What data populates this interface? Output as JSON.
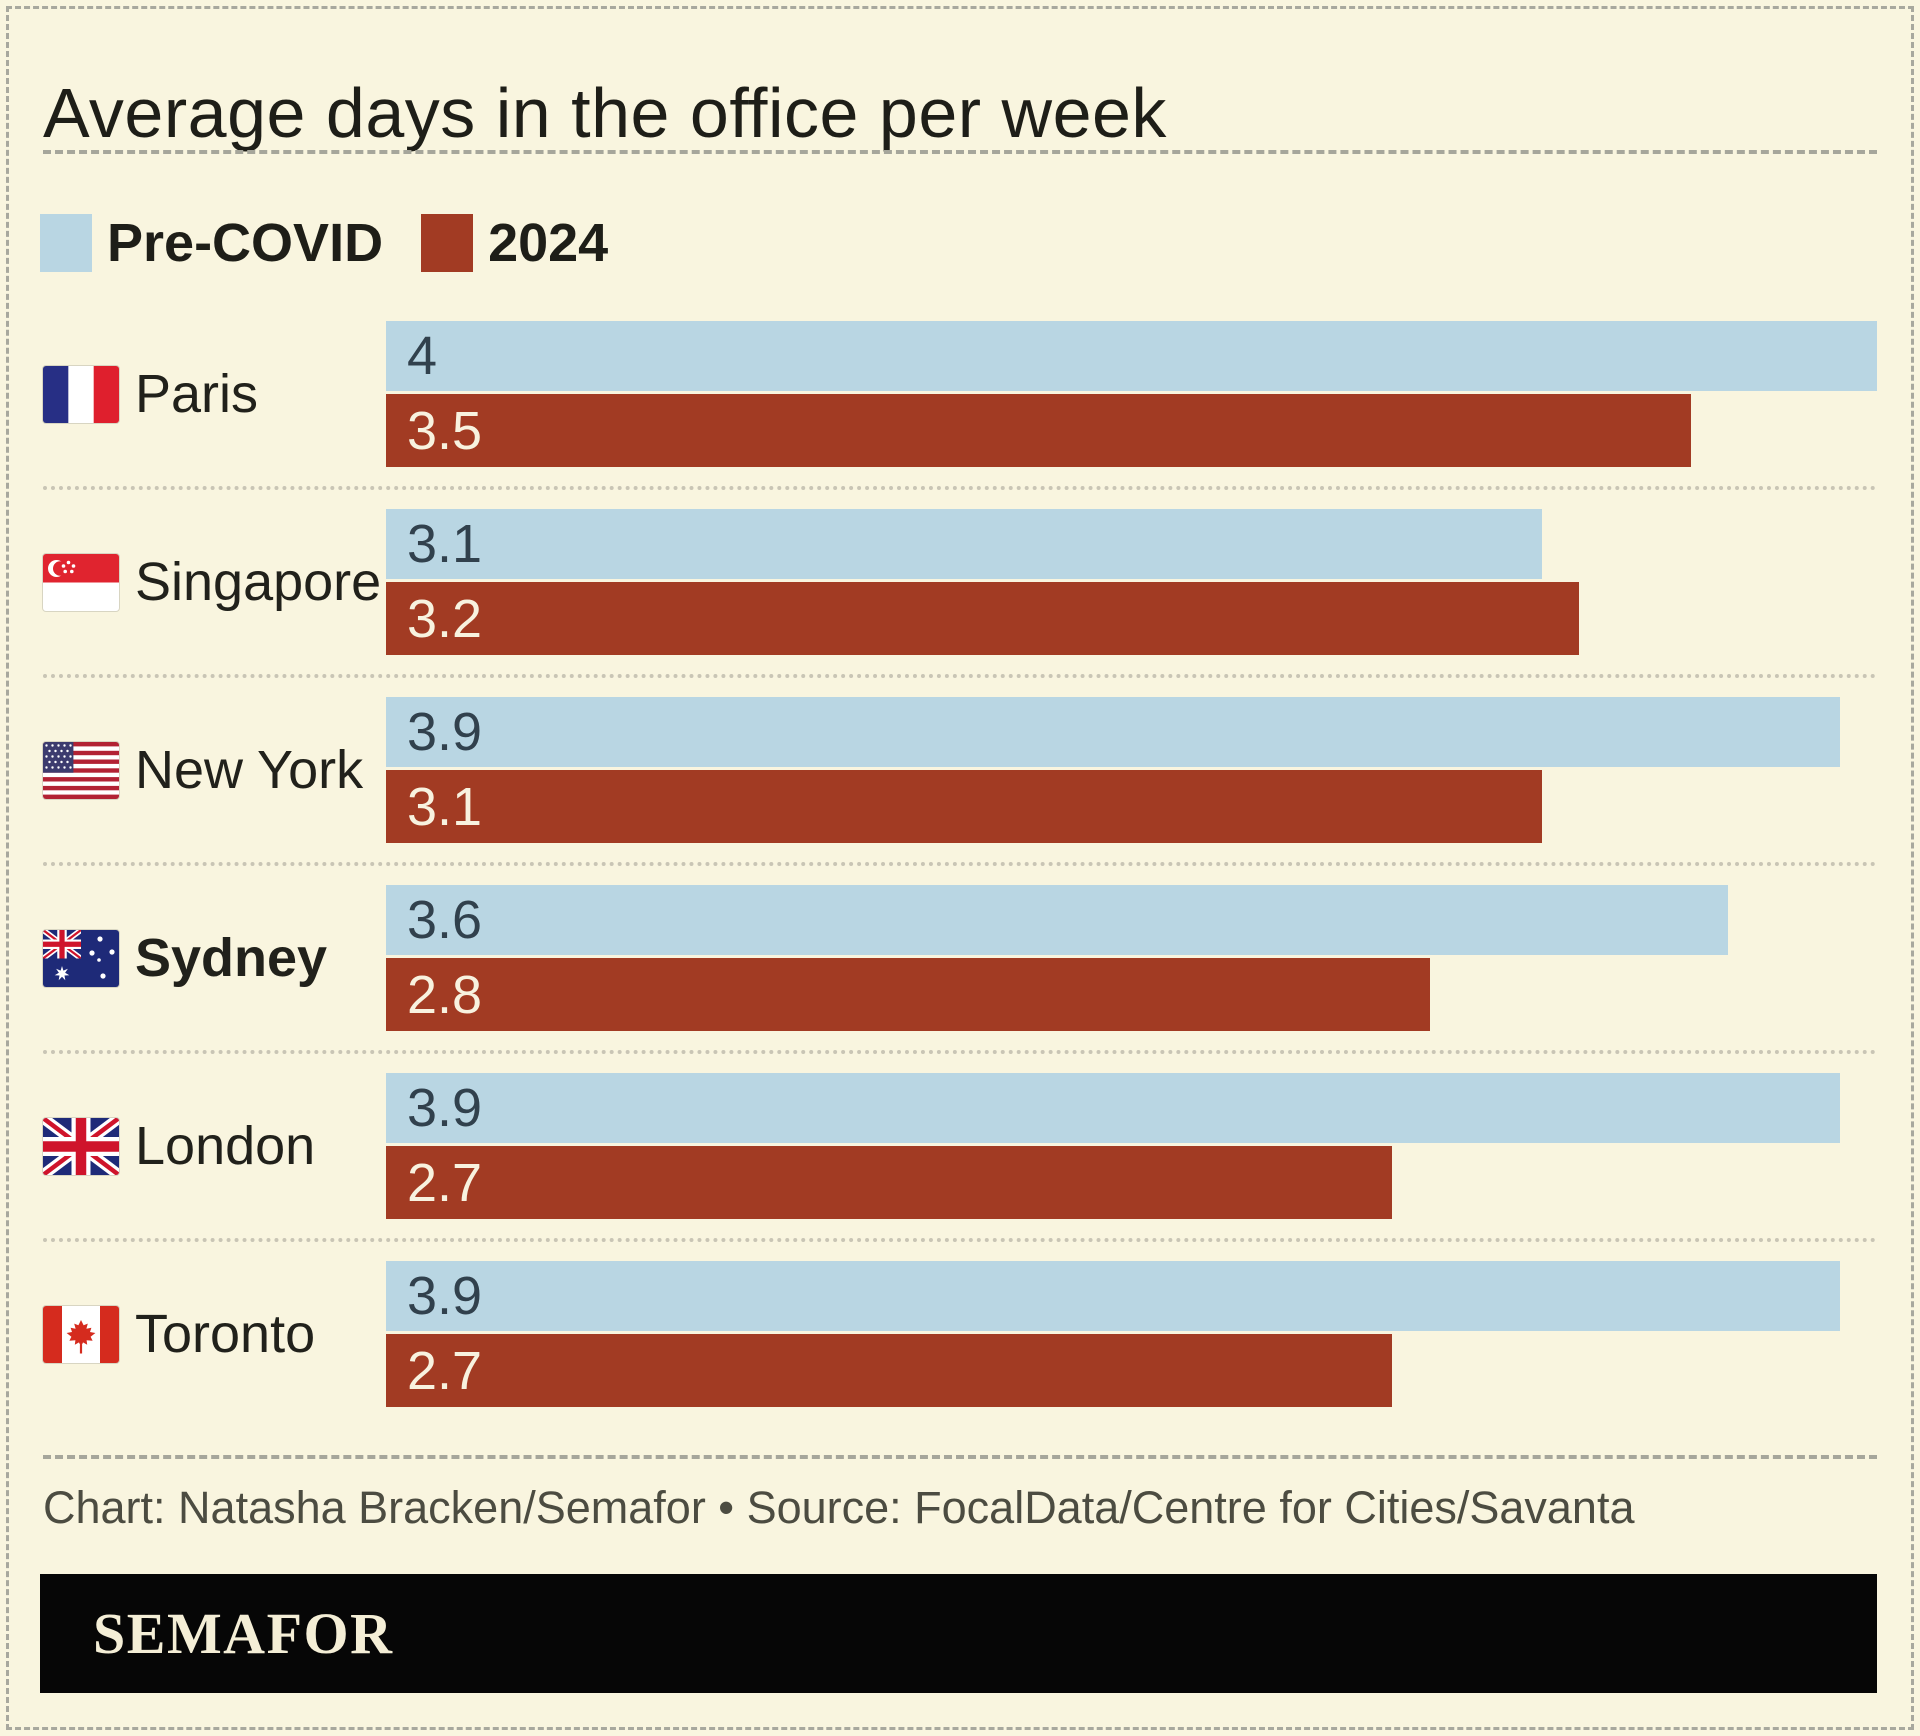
{
  "title": "Average days in the office per week",
  "legend": {
    "items": [
      {
        "label": "Pre-COVID",
        "color": "#b9d6e3"
      },
      {
        "label": "2024",
        "color": "#a23b23"
      }
    ],
    "position": "top-left"
  },
  "chart_data": {
    "type": "bar",
    "orientation": "horizontal",
    "title": "Average days in the office per week",
    "xlabel": "",
    "ylabel": "",
    "axis_max": 4,
    "grid": false,
    "value_labels": "inside-start",
    "categories": [
      "Paris",
      "Singapore",
      "New York",
      "Sydney",
      "London",
      "Toronto"
    ],
    "series": [
      {
        "name": "Pre-COVID",
        "color": "#b9d6e3",
        "label_color": "#31414d",
        "values": [
          4,
          3.1,
          3.9,
          3.6,
          3.9,
          3.9
        ]
      },
      {
        "name": "2024",
        "color": "#a23b23",
        "label_color": "#f8f2df",
        "values": [
          3.5,
          3.2,
          3.1,
          2.8,
          2.7,
          2.7
        ]
      }
    ],
    "rows": [
      {
        "city": "Paris",
        "flag": "france",
        "pre_covid": 4,
        "y2024": 3.5,
        "highlight": false
      },
      {
        "city": "Singapore",
        "flag": "singapore",
        "pre_covid": 3.1,
        "y2024": 3.2,
        "highlight": false
      },
      {
        "city": "New York",
        "flag": "usa",
        "pre_covid": 3.9,
        "y2024": 3.1,
        "highlight": false
      },
      {
        "city": "Sydney",
        "flag": "australia",
        "pre_covid": 3.6,
        "y2024": 2.8,
        "highlight": true
      },
      {
        "city": "London",
        "flag": "uk",
        "pre_covid": 3.9,
        "y2024": 2.7,
        "highlight": false
      },
      {
        "city": "Toronto",
        "flag": "canada",
        "pre_covid": 3.9,
        "y2024": 2.7,
        "highlight": false
      }
    ]
  },
  "footer": {
    "credit": "Chart: Natasha Bracken/Semafor • Source: FocalData/Centre for Cities/Savanta"
  },
  "logo": {
    "text": "SEMAFOR"
  },
  "colors": {
    "background": "#f9f5df",
    "pre_covid_bar": "#b9d6e3",
    "bar_2024": "#a23b23",
    "title_text": "#1e1e18",
    "value_on_blue": "#31414d",
    "value_on_rust": "#f8f2df",
    "footer_text": "#4c4c41",
    "logo_bar": "#060606",
    "logo_text": "#f4eed6",
    "row_separator": "#c9c5b5",
    "section_separator": "#a6a69b"
  }
}
